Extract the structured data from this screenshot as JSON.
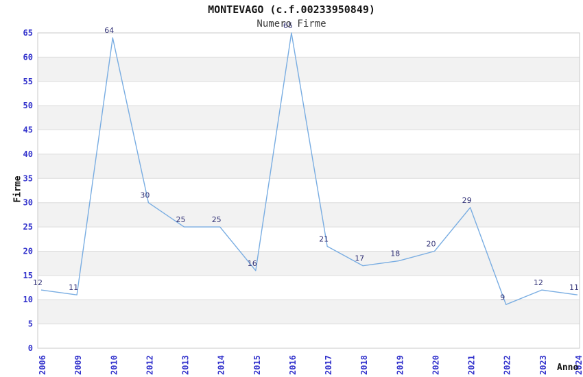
{
  "chart_data": {
    "type": "line",
    "title": "MONTEVAGO (c.f.00233950849)",
    "subtitle": "Numero Firme",
    "xlabel": "Anno",
    "ylabel": "Firme",
    "categories": [
      "2006",
      "2009",
      "2010",
      "2012",
      "2013",
      "2014",
      "2015",
      "2016",
      "2017",
      "2018",
      "2019",
      "2020",
      "2021",
      "2022",
      "2023",
      "2024"
    ],
    "values": [
      12,
      11,
      64,
      30,
      25,
      25,
      16,
      65,
      21,
      17,
      18,
      20,
      29,
      9,
      12,
      11
    ],
    "ylim": [
      0,
      65
    ],
    "ytick_step": 5,
    "grid": "horizontal-bands",
    "legend_position": "none",
    "colors": {
      "line": "#79ade2",
      "axis_tick_labels": "#3333cc",
      "data_point_labels": "#333377",
      "band_fill": "#f2f2f2",
      "gridline": "#dcdcdc",
      "plot_border": "#c8c8c8",
      "title_text": "#161616",
      "subtitle_text": "#3a3a3a",
      "axis_name_text": "#111111"
    }
  }
}
